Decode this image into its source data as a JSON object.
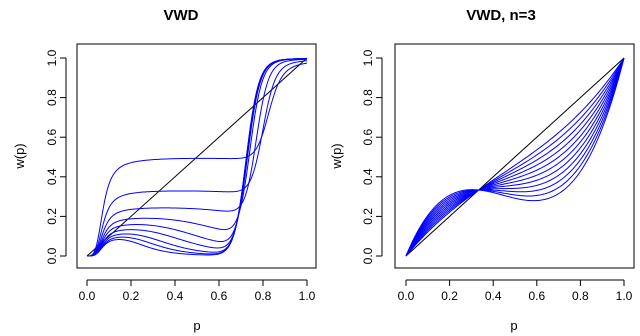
{
  "chart_data": [
    {
      "type": "line",
      "title": "VWD",
      "xlabel": "p",
      "ylabel": "w(p)",
      "xlim": [
        0,
        1
      ],
      "ylim": [
        0,
        1
      ],
      "x_ticks": [
        "0.0",
        "0.2",
        "0.4",
        "0.6",
        "0.8",
        "1.0"
      ],
      "y_ticks": [
        "0.0",
        "0.2",
        "0.4",
        "0.6",
        "0.8",
        "1.0"
      ],
      "reference_line": {
        "from": [
          0,
          0
        ],
        "to": [
          1,
          1
        ],
        "color": "#000000"
      },
      "curve_color": "#0000ff",
      "curve_shape": "weighted",
      "curve_family": [
        {
          "plateau": 0.5,
          "t0": 0.6
        },
        {
          "plateau": 0.335,
          "t0": 0.5
        },
        {
          "plateau": 0.25,
          "t0": 0.4
        },
        {
          "plateau": 0.2,
          "t0": 0.3
        },
        {
          "plateau": 0.17,
          "t0": 0.25
        },
        {
          "plateau": 0.145,
          "t0": 0.22
        },
        {
          "plateau": 0.125,
          "t0": 0.19
        },
        {
          "plateau": 0.11,
          "t0": 0.17
        },
        {
          "plateau": 0.1,
          "t0": 0.15
        }
      ]
    },
    {
      "type": "line",
      "title": "VWD, n=3",
      "xlabel": "p",
      "ylabel": "w(p)",
      "xlim": [
        0,
        1
      ],
      "ylim": [
        0,
        1
      ],
      "x_ticks": [
        "0.0",
        "0.2",
        "0.4",
        "0.6",
        "0.8",
        "1.0"
      ],
      "y_ticks": [
        "0.0",
        "0.2",
        "0.4",
        "0.6",
        "0.8",
        "1.0"
      ],
      "reference_line": {
        "from": [
          0,
          0
        ],
        "to": [
          1,
          1
        ],
        "color": "#000000"
      },
      "curve_color": "#0000ff",
      "curve_shape": "cubic",
      "curve_family": [
        {
          "c": 5.0
        },
        {
          "c": 4.6
        },
        {
          "c": 4.2
        },
        {
          "c": 3.8
        },
        {
          "c": 3.4
        },
        {
          "c": 3.0
        },
        {
          "c": 2.6
        },
        {
          "c": 2.2
        },
        {
          "c": 1.8
        },
        {
          "c": 1.4
        },
        {
          "c": 1.0
        }
      ]
    }
  ]
}
